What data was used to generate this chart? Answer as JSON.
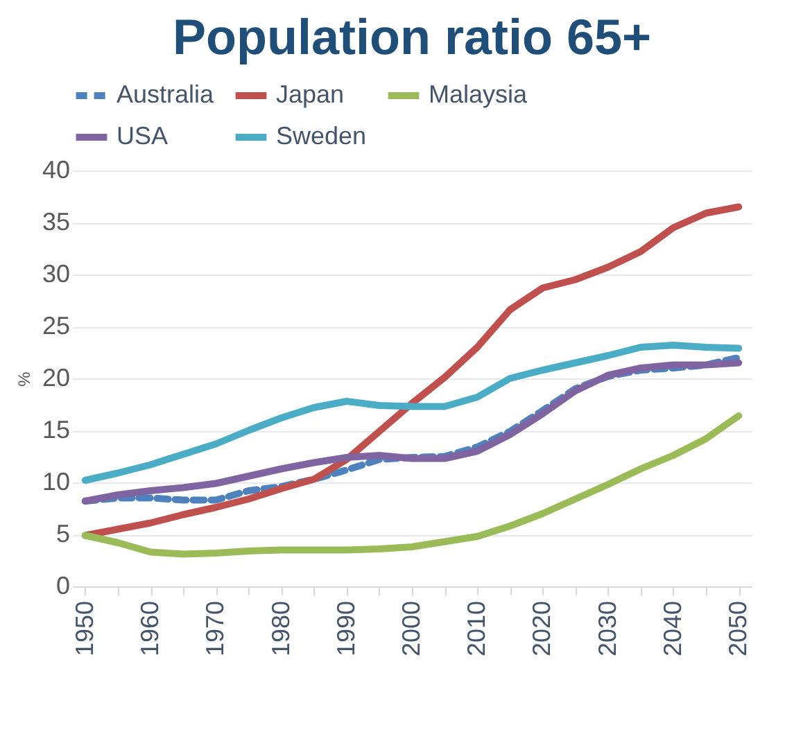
{
  "chart_data": {
    "type": "line",
    "title": "Population ratio 65+",
    "ylabel": "%",
    "x": [
      1950,
      1955,
      1960,
      1965,
      1970,
      1975,
      1980,
      1985,
      1990,
      1995,
      2000,
      2005,
      2010,
      2015,
      2020,
      2025,
      2030,
      2035,
      2040,
      2045,
      2050
    ],
    "series": [
      {
        "name": "Australia",
        "color": "#4f81bd",
        "line_style": "dashed",
        "values": [
          8.2,
          8.5,
          8.5,
          8.3,
          8.3,
          9.2,
          9.6,
          10.3,
          11.2,
          12.2,
          12.4,
          12.5,
          13.4,
          14.9,
          16.9,
          19.0,
          20.2,
          20.8,
          21.0,
          21.3,
          22.0
        ]
      },
      {
        "name": "Japan",
        "color": "#c0504d",
        "line_style": "solid",
        "values": [
          4.9,
          5.5,
          6.1,
          6.9,
          7.6,
          8.4,
          9.4,
          10.3,
          12.2,
          14.9,
          17.6,
          20.1,
          23.0,
          26.6,
          28.7,
          29.5,
          30.7,
          32.2,
          34.5,
          35.9,
          36.5
        ]
      },
      {
        "name": "Malaysia",
        "color": "#9bbb59",
        "line_style": "solid",
        "values": [
          4.9,
          4.2,
          3.3,
          3.1,
          3.2,
          3.4,
          3.5,
          3.5,
          3.5,
          3.6,
          3.8,
          4.3,
          4.8,
          5.8,
          7.0,
          8.4,
          9.8,
          11.3,
          12.6,
          14.2,
          16.4
        ]
      },
      {
        "name": "USA",
        "color": "#8064a2",
        "line_style": "solid",
        "values": [
          8.2,
          8.8,
          9.2,
          9.5,
          9.9,
          10.6,
          11.3,
          11.9,
          12.4,
          12.6,
          12.3,
          12.3,
          13.0,
          14.6,
          16.6,
          18.8,
          20.3,
          21.0,
          21.3,
          21.3,
          21.5
        ]
      },
      {
        "name": "Sweden",
        "color": "#4bacc6",
        "line_style": "solid",
        "values": [
          10.2,
          10.9,
          11.7,
          12.7,
          13.7,
          15.0,
          16.2,
          17.2,
          17.8,
          17.4,
          17.3,
          17.3,
          18.2,
          20.0,
          20.8,
          21.5,
          22.2,
          23.0,
          23.2,
          23.0,
          22.9
        ]
      }
    ],
    "xlim": [
      1948,
      2052
    ],
    "xticks": [
      1950,
      {
        "value": 1955,
        "label": null
      },
      1960,
      {
        "value": 1965,
        "label": null
      },
      1970,
      {
        "value": 1975,
        "label": null
      },
      1980,
      {
        "value": 1985,
        "label": null
      },
      1990,
      {
        "value": 1995,
        "label": null
      },
      2000,
      {
        "value": 2005,
        "label": null
      },
      2010,
      {
        "value": 2015,
        "label": null
      },
      2020,
      {
        "value": 2025,
        "label": null
      },
      2030,
      {
        "value": 2035,
        "label": null
      },
      2040,
      {
        "value": 2045,
        "label": null
      },
      2050
    ],
    "ylim": [
      0,
      40
    ],
    "yticks": [
      0,
      5,
      10,
      15,
      20,
      25,
      30,
      35,
      40
    ],
    "grid": "y",
    "legend": "top",
    "marker": "none"
  }
}
